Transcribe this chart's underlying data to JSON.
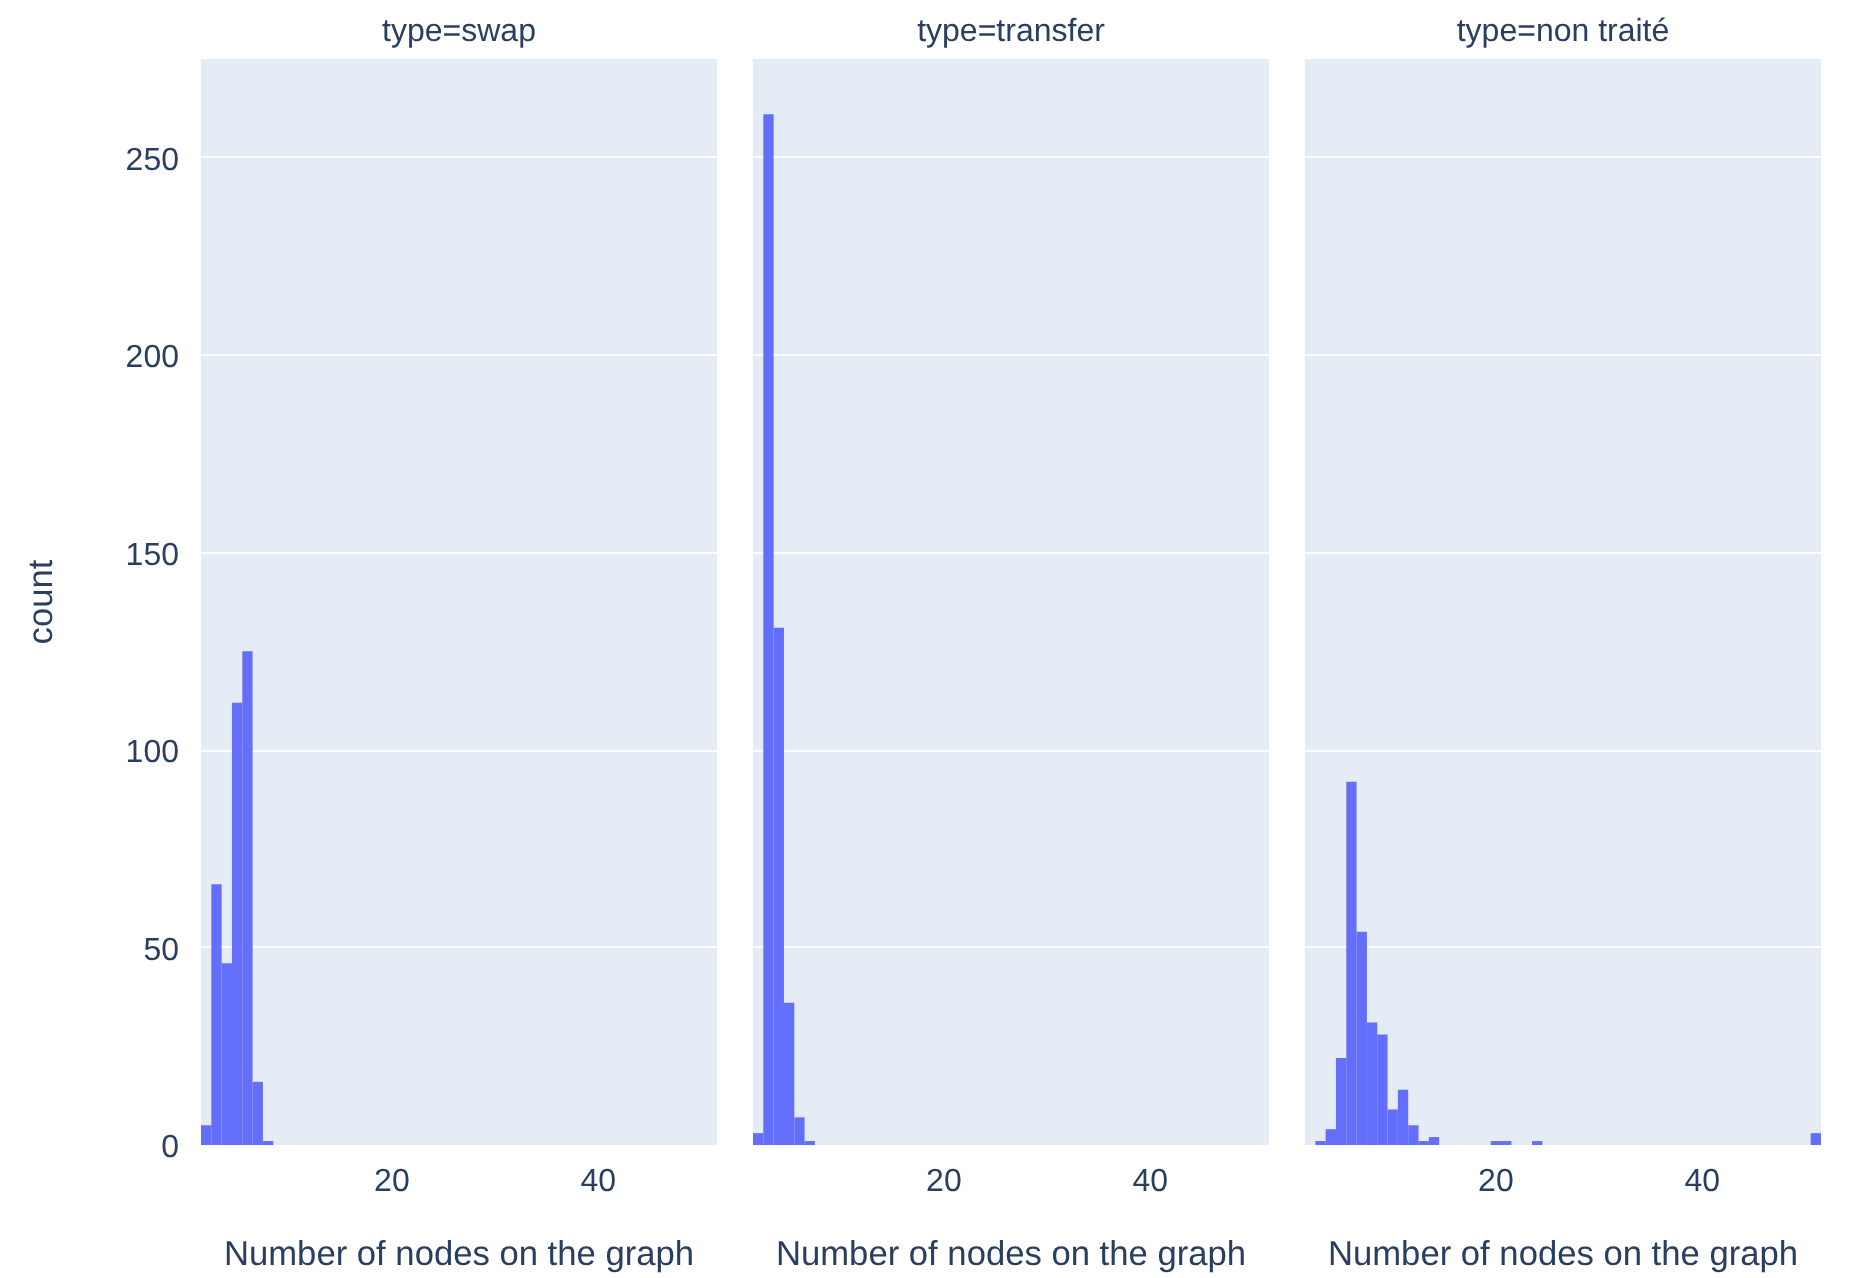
{
  "chart_data": [
    {
      "type": "histogram",
      "title": "type=swap",
      "xlabel": "Number of nodes on the graph",
      "ylabel": "count",
      "color": "#636efa",
      "bins": [
        1.5,
        2.5,
        3.5,
        4.5,
        5.5,
        6.5,
        7.5,
        8.5,
        9.5,
        10.5,
        11.5,
        12.5,
        13.5,
        14.5,
        15.5,
        16.5,
        17.5,
        18.5,
        19.5,
        20.5,
        21.5,
        22.5,
        23.5,
        24.5,
        25.5,
        26.5,
        27.5,
        28.5,
        29.5,
        30.5,
        31.5,
        32.5,
        33.5,
        34.5,
        35.5,
        36.5,
        37.5,
        38.5,
        39.5,
        40.5,
        41.5,
        42.5,
        43.5,
        44.5,
        45.5,
        46.5,
        47.5,
        48.5,
        49.5,
        50.5,
        51.5
      ],
      "values": [
        5,
        66,
        46,
        112,
        125,
        16,
        1,
        0,
        0,
        0,
        0,
        0,
        0,
        0,
        0,
        0,
        0,
        0,
        0,
        0,
        0,
        0,
        0,
        0,
        0,
        0,
        0,
        0,
        0,
        0,
        0,
        0,
        0,
        0,
        0,
        0,
        0,
        0,
        0,
        0,
        0,
        0,
        0,
        0,
        0,
        0,
        0,
        0,
        0,
        0
      ],
      "xlim": [
        1.5,
        51.5
      ],
      "ylim": [
        0,
        275
      ],
      "xticks": [
        20,
        40
      ],
      "yticks": [
        0,
        50,
        100,
        150,
        200,
        250
      ],
      "grid": "y"
    },
    {
      "type": "histogram",
      "title": "type=transfer",
      "xlabel": "Number of nodes on the graph",
      "color": "#636efa",
      "bins": [
        1.5,
        2.5,
        3.5,
        4.5,
        5.5,
        6.5,
        7.5,
        8.5,
        9.5,
        10.5,
        11.5,
        12.5,
        13.5,
        14.5,
        15.5,
        16.5,
        17.5,
        18.5,
        19.5,
        20.5,
        21.5,
        22.5,
        23.5,
        24.5,
        25.5,
        26.5,
        27.5,
        28.5,
        29.5,
        30.5,
        31.5,
        32.5,
        33.5,
        34.5,
        35.5,
        36.5,
        37.5,
        38.5,
        39.5,
        40.5,
        41.5,
        42.5,
        43.5,
        44.5,
        45.5,
        46.5,
        47.5,
        48.5,
        49.5,
        50.5,
        51.5
      ],
      "values": [
        3,
        261,
        131,
        36,
        7,
        1,
        0,
        0,
        0,
        0,
        0,
        0,
        0,
        0,
        0,
        0,
        0,
        0,
        0,
        0,
        0,
        0,
        0,
        0,
        0,
        0,
        0,
        0,
        0,
        0,
        0,
        0,
        0,
        0,
        0,
        0,
        0,
        0,
        0,
        0,
        0,
        0,
        0,
        0,
        0,
        0,
        0,
        0,
        0,
        0
      ],
      "xlim": [
        1.5,
        51.5
      ],
      "ylim": [
        0,
        275
      ],
      "xticks": [
        20,
        40
      ],
      "yticks": [
        0,
        50,
        100,
        150,
        200,
        250
      ],
      "grid": "y",
      "tick_labels": "x"
    },
    {
      "type": "histogram",
      "title": "type=non traité",
      "xlabel": "Number of nodes on the graph",
      "color": "#636efa",
      "bins": [
        1.5,
        2.5,
        3.5,
        4.5,
        5.5,
        6.5,
        7.5,
        8.5,
        9.5,
        10.5,
        11.5,
        12.5,
        13.5,
        14.5,
        15.5,
        16.5,
        17.5,
        18.5,
        19.5,
        20.5,
        21.5,
        22.5,
        23.5,
        24.5,
        25.5,
        26.5,
        27.5,
        28.5,
        29.5,
        30.5,
        31.5,
        32.5,
        33.5,
        34.5,
        35.5,
        36.5,
        37.5,
        38.5,
        39.5,
        40.5,
        41.5,
        42.5,
        43.5,
        44.5,
        45.5,
        46.5,
        47.5,
        48.5,
        49.5,
        50.5,
        51.5
      ],
      "values": [
        0,
        1,
        4,
        22,
        92,
        54,
        31,
        28,
        9,
        14,
        5,
        1,
        2,
        0,
        0,
        0,
        0,
        0,
        1,
        1,
        0,
        0,
        1,
        0,
        0,
        0,
        0,
        0,
        0,
        0,
        0,
        0,
        0,
        0,
        0,
        0,
        0,
        0,
        0,
        0,
        0,
        0,
        0,
        0,
        0,
        0,
        0,
        0,
        0,
        3
      ],
      "xlim": [
        1.5,
        51.5
      ],
      "ylim": [
        0,
        275
      ],
      "xticks": [
        20,
        40
      ],
      "yticks": [
        0,
        50,
        100,
        150,
        200,
        250
      ],
      "grid": "y",
      "tick_labels": "x"
    }
  ]
}
